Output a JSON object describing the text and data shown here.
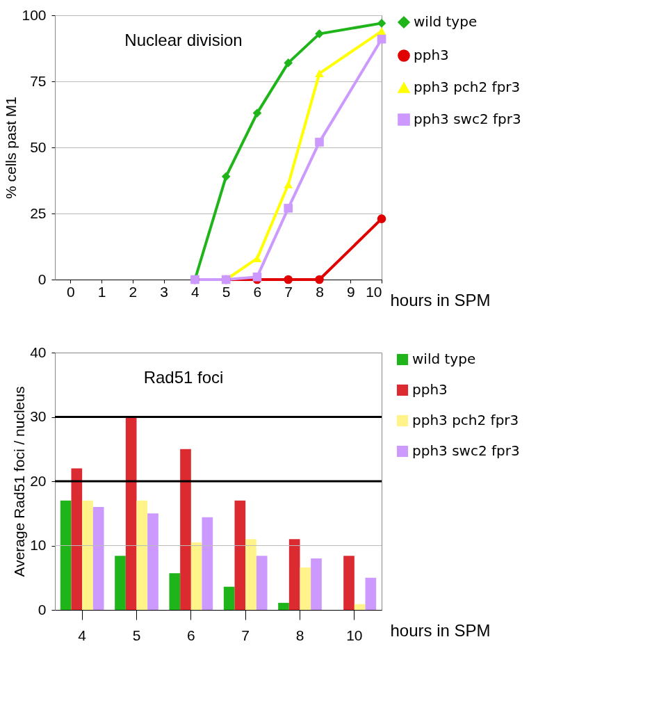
{
  "chart_data": [
    {
      "type": "line",
      "title": "Nuclear division",
      "xlabel": "hours in SPM",
      "ylabel": "% cells past M1",
      "x": [
        4,
        5,
        6,
        7,
        8,
        10
      ],
      "series": [
        {
          "name": "wild type",
          "color": "#1fb51a",
          "marker": "diamond",
          "values": [
            0,
            39,
            63,
            82,
            93,
            97
          ]
        },
        {
          "name": "pph3",
          "color": "#e00000",
          "marker": "circle",
          "values": [
            0,
            0,
            0,
            0,
            0,
            23
          ]
        },
        {
          "name": "pph3 pch2 fpr3",
          "color": "#ffff00",
          "marker": "triangle",
          "values": [
            0,
            0,
            8,
            36,
            78,
            94
          ]
        },
        {
          "name": "pph3 swc2 fpr3",
          "color": "#cc99ff",
          "marker": "square",
          "values": [
            0,
            0,
            1,
            27,
            52,
            91
          ]
        }
      ],
      "xlim": [
        -0.5,
        10
      ],
      "xticks": [
        0,
        1,
        2,
        3,
        4,
        5,
        6,
        7,
        8,
        9,
        10
      ],
      "ylim": [
        0,
        100
      ],
      "yticks": [
        0,
        25,
        50,
        75,
        100
      ],
      "grid": "y",
      "legend": "right"
    },
    {
      "type": "bar",
      "title": "Rad51 foci",
      "xlabel": "hours in SPM",
      "ylabel": "Average Rad51 foci / nucleus",
      "categories": [
        "4",
        "5",
        "6",
        "7",
        "8",
        "10"
      ],
      "series": [
        {
          "name": "wild type",
          "color": "#1fb51a",
          "values": [
            17,
            8.4,
            5.7,
            3.6,
            1.1,
            0
          ]
        },
        {
          "name": "pph3",
          "color": "#dc2b30",
          "values": [
            22,
            30,
            25,
            17,
            11,
            8.4
          ]
        },
        {
          "name": "pph3 pch2 fpr3",
          "color": "#fff38a",
          "values": [
            17,
            17,
            10.5,
            11,
            6.6,
            0.9
          ]
        },
        {
          "name": "pph3 swc2 fpr3",
          "color": "#cc99ff",
          "values": [
            16,
            15,
            14.4,
            8.4,
            8,
            5
          ]
        }
      ],
      "ylim": [
        0,
        40
      ],
      "yticks": [
        0,
        10,
        20,
        30,
        40
      ],
      "legend": "right",
      "ref_lines": [
        {
          "axis": "y",
          "value": 10,
          "color": "#bbbbbb"
        },
        {
          "axis": "y",
          "value": 20,
          "color": "#000000"
        },
        {
          "axis": "y",
          "value": 30,
          "color": "#000000"
        }
      ]
    }
  ]
}
